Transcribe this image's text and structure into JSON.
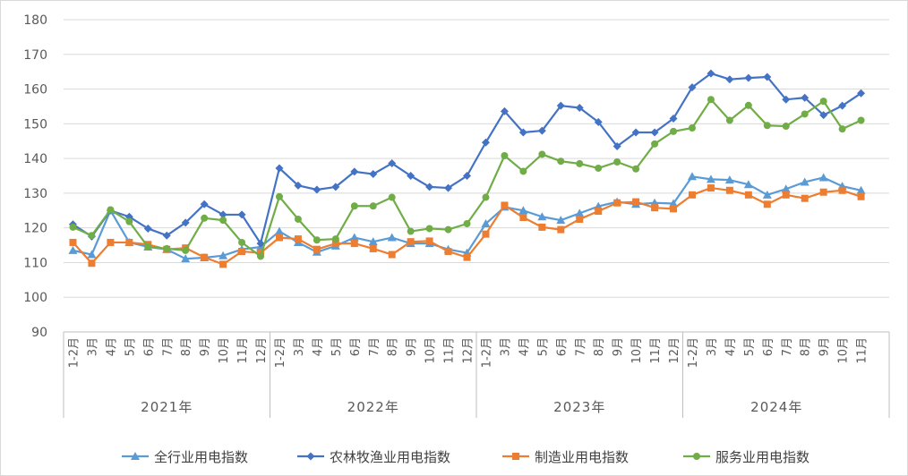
{
  "chart_data": {
    "type": "line",
    "yaxis": {
      "ticks": [
        90,
        100,
        110,
        120,
        130,
        140,
        150,
        160,
        170,
        180
      ]
    },
    "categories": [
      "1-2月",
      "3月",
      "4月",
      "5月",
      "6月",
      "7月",
      "8月",
      "9月",
      "10月",
      "11月",
      "12月",
      "1-2月",
      "3月",
      "4月",
      "5月",
      "6月",
      "7月",
      "8月",
      "9月",
      "10月",
      "11月",
      "12月",
      "1-2月",
      "3月",
      "4月",
      "5月",
      "6月",
      "7月",
      "8月",
      "9月",
      "10月",
      "11月",
      "12月",
      "1-2月",
      "3月",
      "4月",
      "5月",
      "6月",
      "7月",
      "8月",
      "9月",
      "10月",
      "11月"
    ],
    "groups": [
      {
        "label": "2021年",
        "count": 11
      },
      {
        "label": "2022年",
        "count": 11
      },
      {
        "label": "2023年",
        "count": 11
      },
      {
        "label": "2024年",
        "count": 10
      }
    ],
    "series": [
      {
        "name": "全行业用电指数",
        "color": "#5b9bd5",
        "marker": "triangle",
        "values": [
          113.5,
          112.3,
          125.0,
          115.8,
          114.5,
          113.8,
          111.1,
          111.4,
          112.0,
          113.8,
          114.5,
          119.0,
          115.8,
          113.0,
          114.8,
          117.2,
          116.0,
          117.2,
          115.5,
          115.5,
          113.8,
          112.8,
          121.2,
          126.0,
          125.0,
          123.2,
          122.2,
          124.2,
          126.2,
          127.5,
          126.8,
          127.2,
          127.0,
          134.8,
          134.0,
          133.8,
          132.5,
          129.5,
          131.2,
          133.2,
          134.5,
          132.0,
          130.8
        ]
      },
      {
        "name": "农林牧渔业用电指数",
        "color": "#4472c4",
        "marker": "diamond",
        "values": [
          121.0,
          117.5,
          125.0,
          123.2,
          119.8,
          117.8,
          121.5,
          126.8,
          123.8,
          123.8,
          115.5,
          137.2,
          132.2,
          131.0,
          131.8,
          136.2,
          135.5,
          138.6,
          135.0,
          131.8,
          131.5,
          135.0,
          144.6,
          153.6,
          147.5,
          148.0,
          155.2,
          154.6,
          150.5,
          143.5,
          147.5,
          147.5,
          151.5,
          160.5,
          164.5,
          162.8,
          163.2,
          163.5,
          157.0,
          157.5,
          152.5,
          155.2,
          158.8
        ]
      },
      {
        "name": "制造业用电指数",
        "color": "#ed7d31",
        "marker": "square",
        "values": [
          115.8,
          109.8,
          115.8,
          115.8,
          115.2,
          113.8,
          114.2,
          111.5,
          109.5,
          113.2,
          112.8,
          117.2,
          116.8,
          113.8,
          115.5,
          115.5,
          114.0,
          112.3,
          116.0,
          116.2,
          113.2,
          111.5,
          118.2,
          126.5,
          123.0,
          120.2,
          119.5,
          122.5,
          124.8,
          127.2,
          127.5,
          125.8,
          125.5,
          129.5,
          131.5,
          130.8,
          129.5,
          126.8,
          129.5,
          128.5,
          130.3,
          130.8,
          129.0
        ]
      },
      {
        "name": "服务业用电指数",
        "color": "#70ad47",
        "marker": "circle",
        "values": [
          120.2,
          117.8,
          125.2,
          121.8,
          114.5,
          114.0,
          113.5,
          122.8,
          122.2,
          115.8,
          111.8,
          129.0,
          122.5,
          116.5,
          116.8,
          126.3,
          126.3,
          128.8,
          119.0,
          119.8,
          119.5,
          121.2,
          128.8,
          140.8,
          136.3,
          141.2,
          139.2,
          138.5,
          137.2,
          139.0,
          137.0,
          144.2,
          147.8,
          148.8,
          157.0,
          151.0,
          155.3,
          149.5,
          149.3,
          152.8,
          156.5,
          148.5,
          151.0
        ]
      }
    ]
  }
}
